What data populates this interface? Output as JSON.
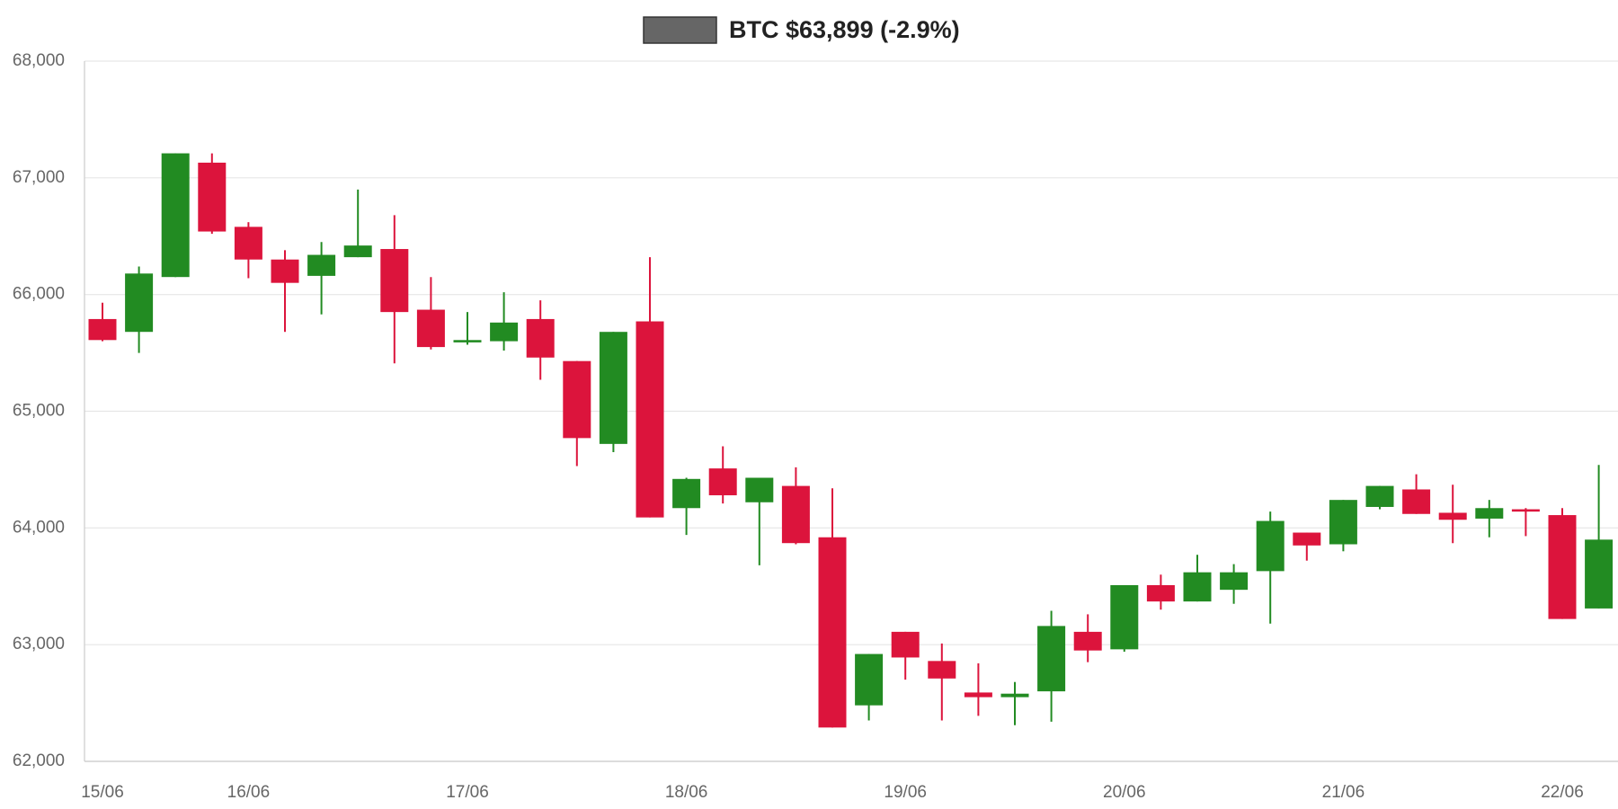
{
  "chart_data": {
    "type": "candlestick",
    "legend_label": "BTC $63,899 (-2.9%)",
    "legend_color": "#666666",
    "up_color": "#228b22",
    "down_color": "#dc143c",
    "grid": true,
    "categories": [
      "15/06",
      null,
      null,
      null,
      "16/06",
      null,
      null,
      null,
      null,
      null,
      "17/06",
      null,
      null,
      null,
      null,
      null,
      "18/06",
      null,
      null,
      null,
      null,
      null,
      "19/06",
      null,
      null,
      null,
      null,
      null,
      "20/06",
      null,
      null,
      null,
      null,
      null,
      "21/06",
      null,
      null,
      null,
      null,
      null,
      "22/06",
      null
    ],
    "open": [
      65790,
      65680,
      66150,
      67130,
      66580,
      66300,
      66160,
      66320,
      66390,
      65870,
      65590,
      65600,
      65790,
      65430,
      64720,
      65770,
      64170,
      64510,
      64220,
      64360,
      63920,
      62480,
      63110,
      62860,
      62590,
      62550,
      62600,
      63110,
      62960,
      63510,
      63370,
      63470,
      63630,
      63960,
      63860,
      64180,
      64330,
      64130,
      64080,
      64160,
      64110,
      63310
    ],
    "high": [
      65930,
      66240,
      67210,
      67210,
      66620,
      66380,
      66450,
      66900,
      66680,
      66150,
      65850,
      66020,
      65950,
      65430,
      65680,
      66320,
      64430,
      64700,
      64430,
      64520,
      64340,
      62920,
      63110,
      63010,
      62840,
      62680,
      63290,
      63260,
      63510,
      63600,
      63770,
      63690,
      64140,
      63960,
      64240,
      64360,
      64460,
      64370,
      64240,
      64170,
      64170,
      64540
    ],
    "low": [
      65600,
      65500,
      66150,
      66520,
      66140,
      65680,
      65830,
      66320,
      65410,
      65530,
      65570,
      65520,
      65270,
      64530,
      64650,
      64090,
      63940,
      64210,
      63680,
      63860,
      62290,
      62350,
      62700,
      62350,
      62390,
      62310,
      62340,
      62850,
      62940,
      63300,
      63370,
      63350,
      63180,
      63720,
      63800,
      64160,
      64120,
      63870,
      63920,
      63930,
      63220,
      63310
    ],
    "close": [
      65610,
      66180,
      67210,
      66540,
      66300,
      66100,
      66340,
      66420,
      65850,
      65550,
      65610,
      65760,
      65460,
      64770,
      65680,
      64090,
      64420,
      64280,
      64430,
      63870,
      62290,
      62920,
      62890,
      62710,
      62550,
      62580,
      63160,
      62950,
      63510,
      63370,
      63620,
      63620,
      64060,
      63850,
      64240,
      64360,
      64120,
      64070,
      64170,
      64140,
      63220,
      63900
    ],
    "ylim": [
      62000,
      68000
    ],
    "yticks": [
      {
        "value": 62000,
        "label": "62,000"
      },
      {
        "value": 63000,
        "label": "63,000"
      },
      {
        "value": 64000,
        "label": "64,000"
      },
      {
        "value": 65000,
        "label": "65,000"
      },
      {
        "value": 66000,
        "label": "66,000"
      },
      {
        "value": 67000,
        "label": "67,000"
      },
      {
        "value": 68000,
        "label": "68,000"
      }
    ]
  }
}
